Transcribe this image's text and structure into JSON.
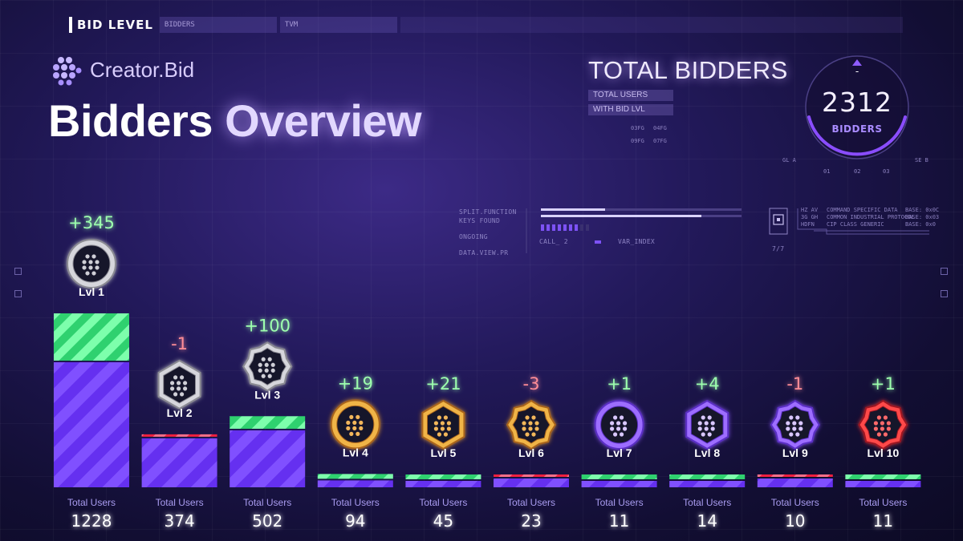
{
  "header": {
    "tab_label": "BID LEVEL",
    "box1": "BIDDERS",
    "box2": "TVM"
  },
  "brand": {
    "name": "Creator.Bid"
  },
  "title": {
    "word1": "Bidders",
    "word2": "Overview"
  },
  "total": {
    "title": "TOTAL BIDDERS",
    "tag1": "TOTAL USERS",
    "tag2": "WITH BID LVL",
    "codes": [
      "03FG",
      "04FG",
      "09FG",
      "07FG"
    ],
    "value": "2312",
    "unit": "BIDDERS",
    "dash": "-",
    "ticks": [
      "01",
      "02",
      "03"
    ],
    "corner_left": "GL A",
    "corner_right": "SE B"
  },
  "hud": {
    "left_labels": [
      "SPLIT.FUNCTION",
      "KEYS FOUND",
      "ONGOING",
      "DATA.VIEW.PR"
    ],
    "call_label": "CALL_ 2",
    "var_label": "VAR_INDEX",
    "doc_counter": "7/7",
    "codes": [
      "HZ AV",
      "3G GH",
      "HDFN"
    ],
    "descs": [
      "COMMAND SPECIFIC DATA",
      "COMMON INDUSTRIAL PROTOCOL",
      "CIP CLASS GENERIC"
    ],
    "bases": [
      "BASE: 0x0C",
      "BASE: 0x03",
      "BASE: 0x0"
    ]
  },
  "colors": {
    "bar": "#6a35f5",
    "positive": "#39e07a",
    "negative": "#ff2f4f",
    "silver": "#c9c9cf",
    "gold": "#e7a33a",
    "purple": "#8a5cf7",
    "red": "#e0323a"
  },
  "chart_data": {
    "type": "bar",
    "categories": [
      "Lvl 1",
      "Lvl 2",
      "Lvl 3",
      "Lvl 4",
      "Lvl 5",
      "Lvl 6",
      "Lvl 7",
      "Lvl 8",
      "Lvl 9",
      "Lvl 10"
    ],
    "series": [
      {
        "values": [
          1228,
          374,
          502,
          94,
          45,
          23,
          11,
          14,
          10,
          11
        ]
      },
      {
        "values": [
          345,
          -1,
          100,
          19,
          21,
          -3,
          1,
          4,
          -1,
          1
        ]
      }
    ],
    "count_caption": "Total Users",
    "badge_tier": [
      "silver",
      "silver",
      "silver",
      "gold",
      "gold",
      "gold",
      "purple",
      "purple",
      "purple",
      "red"
    ],
    "badge_shape": [
      "circle",
      "hexagon",
      "star8",
      "circle",
      "hexagon",
      "star8",
      "circle",
      "hexagon",
      "star8",
      "star8"
    ],
    "ylim": [
      0,
      1573
    ],
    "grid": false,
    "legend": "none"
  }
}
